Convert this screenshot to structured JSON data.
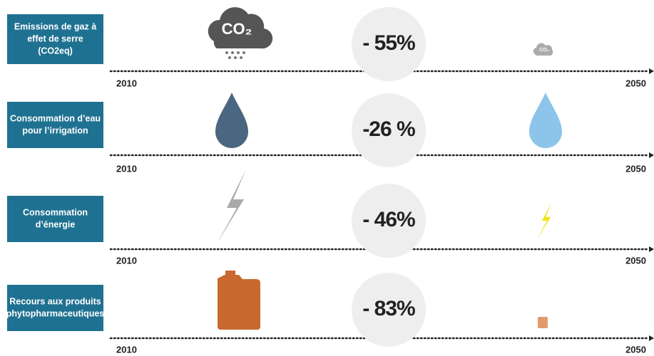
{
  "rows": [
    {
      "label": [
        "Emissions de gaz à",
        "effet de serre",
        "(CO2eq)"
      ],
      "change": "- 55%",
      "start": "2010",
      "end": "2050"
    },
    {
      "label": [
        "Consommation d’eau",
        "pour l’irrigation"
      ],
      "change": "-26 %",
      "start": "2010",
      "end": "2050"
    },
    {
      "label": [
        "Consommation",
        "d’énergie"
      ],
      "change": "- 46%",
      "start": "2010",
      "end": "2050"
    },
    {
      "label": [
        "Recours aux produits",
        "phytopharmaceutiques"
      ],
      "change": "- 83%",
      "start": "2010",
      "end": "2050"
    }
  ]
}
